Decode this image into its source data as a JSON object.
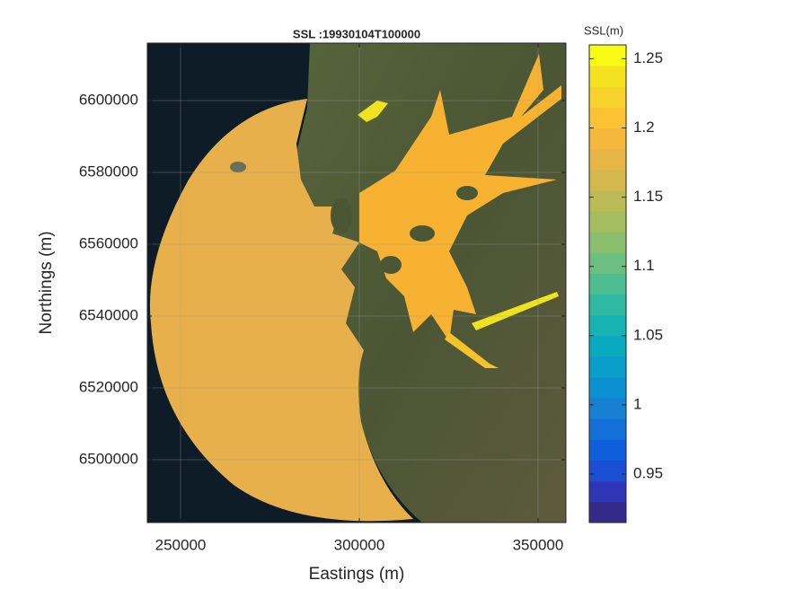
{
  "chart_data": {
    "type": "map",
    "title": "SSL :19930104T100000",
    "xlabel": "Eastings (m)",
    "ylabel": "Northings (m)",
    "xlim": [
      240700,
      357800
    ],
    "xticks": [
      250000,
      300000,
      350000
    ],
    "ylim": [
      6482500,
      6616000
    ],
    "yticks": [
      6500000,
      6520000,
      6540000,
      6560000,
      6580000,
      6600000
    ],
    "grid": true,
    "colorbar": {
      "label": "SSL(m)",
      "clim": [
        0.915,
        1.26
      ],
      "cticks": [
        0.95,
        1,
        1.05,
        1.1,
        1.15,
        1.2,
        1.25
      ],
      "colormap": [
        "#352a87",
        "#2e35b6",
        "#1a4fd4",
        "#0f5fdc",
        "#1370d6",
        "#1680d3",
        "#0b91d2",
        "#0a9ecb",
        "#09a9c0",
        "#17b3b2",
        "#2fb8a2",
        "#4ebd91",
        "#6cbf7e",
        "#8bbf6d",
        "#a4bd5e",
        "#bdbb55",
        "#d2b84d",
        "#e5b546",
        "#f5b73c",
        "#fcc432",
        "#f8d32b",
        "#f4e221",
        "#f9fb15"
      ]
    }
  }
}
